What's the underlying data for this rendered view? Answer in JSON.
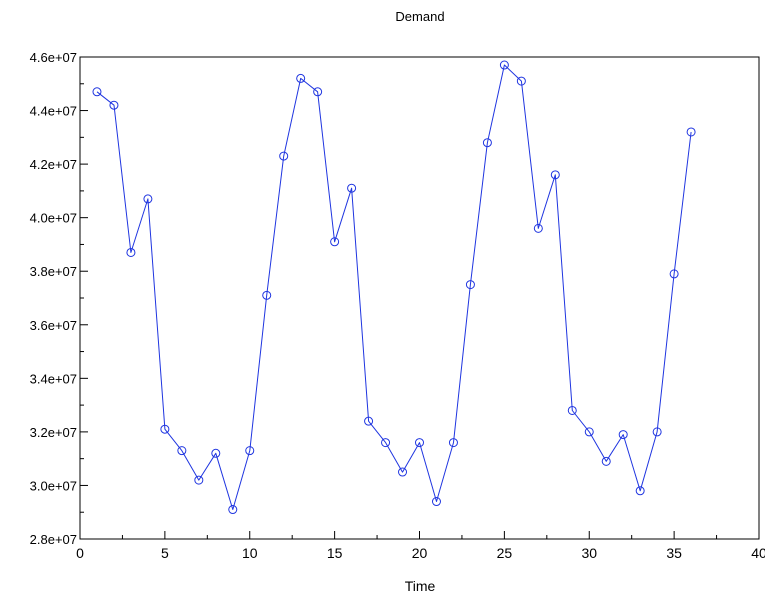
{
  "chart_data": {
    "type": "line",
    "title": "Demand",
    "xlabel": "Time",
    "ylabel": "",
    "xlim": [
      0,
      40
    ],
    "ylim": [
      28000000,
      46000000
    ],
    "grid": false,
    "marker": "circle",
    "x_ticks": [
      0,
      5,
      10,
      15,
      20,
      25,
      30,
      35,
      40
    ],
    "x_tick_labels": [
      "0",
      "5",
      "10",
      "15",
      "20",
      "25",
      "30",
      "35",
      "40"
    ],
    "y_ticks": [
      28000000,
      30000000,
      32000000,
      34000000,
      36000000,
      38000000,
      40000000,
      42000000,
      44000000,
      46000000
    ],
    "y_tick_labels": [
      "2.8e+07",
      "3.0e+07",
      "3.2e+07",
      "3.4e+07",
      "3.6e+07",
      "3.8e+07",
      "4.0e+07",
      "4.2e+07",
      "4.4e+07",
      "4.6e+07"
    ],
    "colors": {
      "series": "#1f35e0",
      "axes": "#000000"
    },
    "series": [
      {
        "x": [
          1,
          2,
          3,
          4,
          5,
          6,
          7,
          8,
          9,
          10,
          11,
          12,
          13,
          14,
          15,
          16,
          17,
          18,
          19,
          20,
          21,
          22,
          23,
          24,
          25,
          26,
          27,
          28,
          29,
          30,
          31,
          32,
          33,
          34,
          35,
          36
        ],
        "values": [
          44700000,
          44200000,
          38700000,
          40700000,
          32100000,
          31300000,
          30200000,
          31200000,
          29100000,
          31300000,
          37100000,
          42300000,
          45200000,
          44700000,
          39100000,
          41100000,
          32400000,
          31600000,
          30500000,
          31600000,
          29400000,
          31600000,
          37500000,
          42800000,
          45700000,
          45100000,
          39600000,
          41600000,
          32800000,
          32000000,
          30900000,
          31900000,
          29800000,
          32000000,
          37900000,
          43200000
        ]
      }
    ]
  }
}
